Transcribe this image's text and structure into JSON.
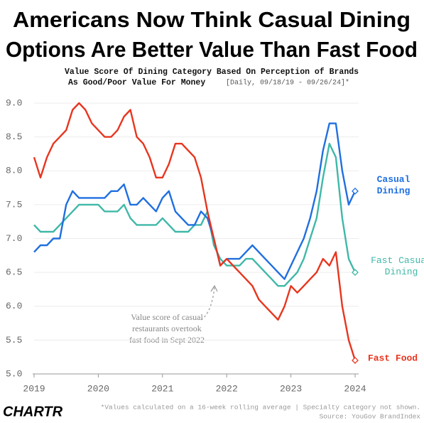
{
  "chart_data": {
    "type": "line",
    "title": [
      "Americans Now Think Casual Dining",
      "Options Are Better Value Than Fast Food"
    ],
    "subtitle": [
      "Value Score Of Dining Category Based On Perception of Brands",
      "As Good/Poor Value For Money"
    ],
    "subtitle_note": "[Daily, 09/18/19 - 09/26/24]*",
    "annotation": [
      "Value score of casual",
      "restaurants overtook",
      "fast food in Sept 2022"
    ],
    "footnote": [
      "*Values calculated on a 16-week rolling average | Specialty category not shown.",
      "Source: YouGov BrandIndex"
    ],
    "brand": "CHARTR",
    "x": [
      2019.0,
      2019.1,
      2019.2,
      2019.3,
      2019.4,
      2019.5,
      2019.6,
      2019.7,
      2019.8,
      2019.9,
      2020.0,
      2020.1,
      2020.2,
      2020.3,
      2020.4,
      2020.5,
      2020.6,
      2020.7,
      2020.8,
      2020.9,
      2021.0,
      2021.1,
      2021.2,
      2021.3,
      2021.4,
      2021.5,
      2021.6,
      2021.7,
      2021.8,
      2021.9,
      2022.0,
      2022.1,
      2022.2,
      2022.3,
      2022.4,
      2022.5,
      2022.6,
      2022.7,
      2022.8,
      2022.9,
      2023.0,
      2023.1,
      2023.2,
      2023.3,
      2023.4,
      2023.5,
      2023.6,
      2023.7,
      2023.8,
      2023.9,
      2024.0
    ],
    "series": [
      {
        "name": "Fast Casual Dining",
        "color": "#3fb8a8",
        "values": [
          7.2,
          7.1,
          7.1,
          7.1,
          7.2,
          7.3,
          7.4,
          7.5,
          7.5,
          7.5,
          7.5,
          7.4,
          7.4,
          7.4,
          7.5,
          7.3,
          7.2,
          7.2,
          7.2,
          7.2,
          7.3,
          7.2,
          7.1,
          7.1,
          7.1,
          7.2,
          7.2,
          7.4,
          6.9,
          6.7,
          6.6,
          6.6,
          6.6,
          6.7,
          6.7,
          6.6,
          6.5,
          6.4,
          6.3,
          6.3,
          6.4,
          6.5,
          6.7,
          7.0,
          7.3,
          7.9,
          8.4,
          8.2,
          7.3,
          6.7,
          6.5
        ]
      },
      {
        "name": "Casual Dining",
        "color": "#1f6fe0",
        "values": [
          6.8,
          6.9,
          6.9,
          7.0,
          7.0,
          7.5,
          7.7,
          7.6,
          7.6,
          7.6,
          7.6,
          7.6,
          7.7,
          7.7,
          7.8,
          7.5,
          7.5,
          7.6,
          7.5,
          7.4,
          7.6,
          7.7,
          7.4,
          7.3,
          7.2,
          7.2,
          7.4,
          7.3,
          7.0,
          6.6,
          6.7,
          6.7,
          6.7,
          6.8,
          6.9,
          6.8,
          6.7,
          6.6,
          6.5,
          6.4,
          6.6,
          6.8,
          7.0,
          7.3,
          7.7,
          8.3,
          8.7,
          8.7,
          8.0,
          7.5,
          7.7
        ]
      },
      {
        "name": "Fast Food",
        "color": "#e8351e",
        "values": [
          8.2,
          7.9,
          8.2,
          8.4,
          8.5,
          8.6,
          8.9,
          9.0,
          8.9,
          8.7,
          8.6,
          8.5,
          8.5,
          8.6,
          8.8,
          8.9,
          8.5,
          8.4,
          8.2,
          7.9,
          7.9,
          8.1,
          8.4,
          8.4,
          8.3,
          8.2,
          7.9,
          7.4,
          7.0,
          6.6,
          6.7,
          6.6,
          6.5,
          6.4,
          6.3,
          6.1,
          6.0,
          5.9,
          5.8,
          6.0,
          6.3,
          6.2,
          6.3,
          6.4,
          6.5,
          6.7,
          6.6,
          6.8,
          6.0,
          5.5,
          5.2
        ]
      }
    ],
    "xlim": [
      2019,
      2024
    ],
    "xticks": [
      2019,
      2020,
      2021,
      2022,
      2023,
      2024
    ],
    "ylim": [
      5.0,
      9.0
    ],
    "yticks": [
      {
        "value": 5.0,
        "label": "5.0"
      },
      5.5,
      {
        "value": 6.0,
        "label": "6.0"
      },
      6.5,
      {
        "value": 7.0,
        "label": "7.0"
      },
      7.5,
      {
        "value": 8.0,
        "label": "8.0"
      },
      8.5,
      {
        "value": 9.0,
        "label": "9.0"
      }
    ],
    "grid": true
  }
}
